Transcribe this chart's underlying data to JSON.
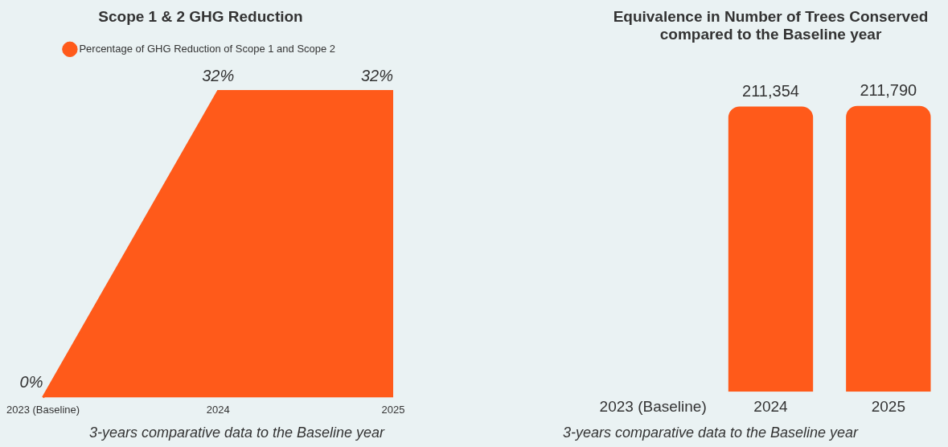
{
  "chart_data": [
    {
      "type": "area",
      "title": "Scope 1 & 2 GHG Reduction",
      "categories": [
        "2023 (Baseline)",
        "2024",
        "2025"
      ],
      "series": [
        {
          "name": "Percentage of GHG Reduction of Scope 1 and Scope 2",
          "color": "#ff5a1a",
          "values": [
            0,
            32,
            32
          ],
          "value_labels": [
            "0%",
            "32%",
            "32%"
          ]
        }
      ],
      "legend": "top",
      "grid": false,
      "tick_labels": "x",
      "annotations": [
        "3-years comparative data to the Baseline year"
      ]
    },
    {
      "type": "bar",
      "title": "Equivalence in Number of Trees Conserved compared to the Baseline year",
      "categories": [
        "2023 (Baseline)",
        "2024",
        "2025"
      ],
      "series": [
        {
          "color": "#ff5a1a",
          "values": [
            null,
            211354,
            211790
          ],
          "value_labels": [
            null,
            "211,354",
            "211,790"
          ]
        }
      ],
      "legend": false,
      "grid": false,
      "tick_labels": "x",
      "annotations": [
        "3-years comparative data to the Baseline year"
      ]
    }
  ]
}
